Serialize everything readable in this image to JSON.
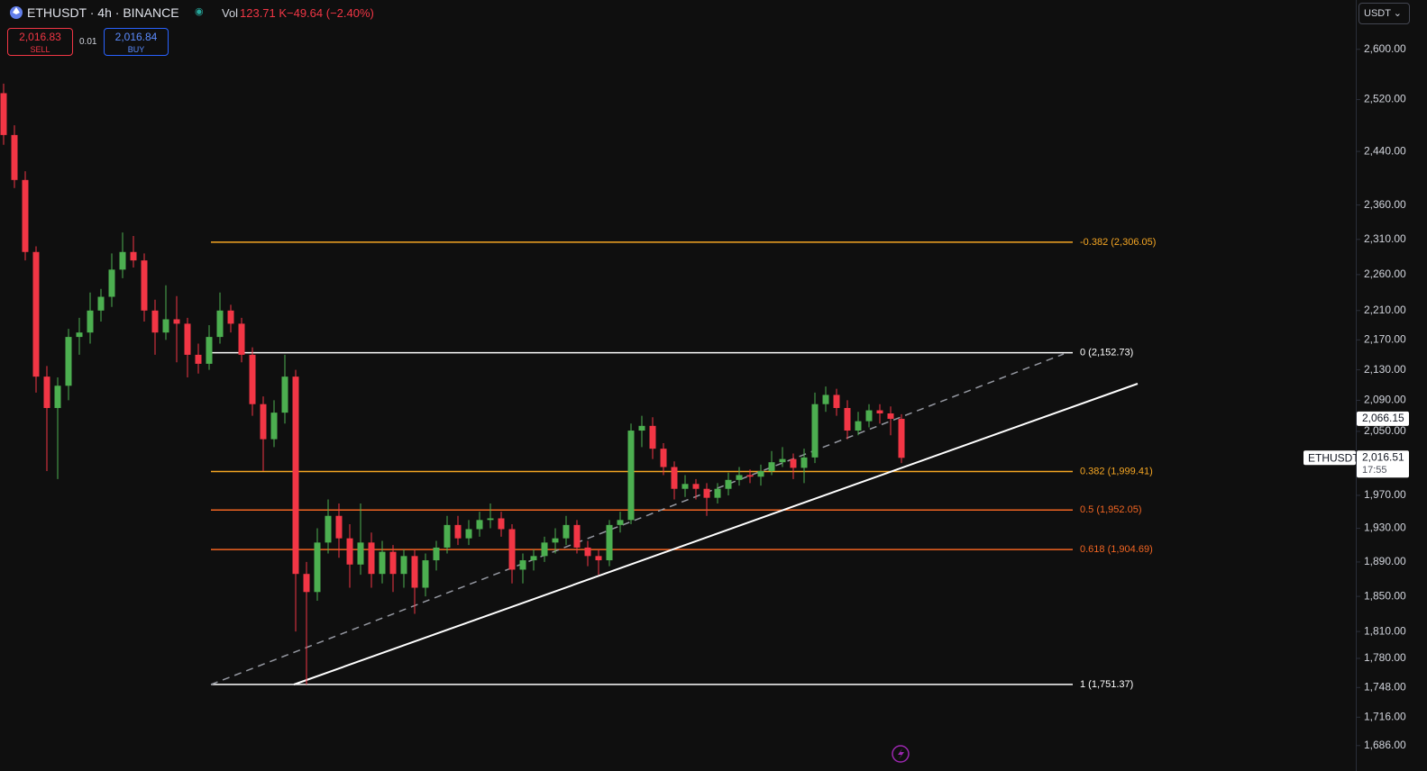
{
  "header": {
    "symbol": "ETHUSDT · 4h · BINANCE",
    "vol_label": "Vol",
    "volume": "123.71 K",
    "change": "−49.64 (−2.40%)",
    "sell_price": "2,016.83",
    "sell_label": "SELL",
    "spread": "0.01",
    "buy_price": "2,016.84",
    "buy_label": "BUY",
    "currency": "USDT"
  },
  "chart_data": {
    "type": "candlestick",
    "log_scale": true,
    "grid": false,
    "up_color": "#4caf50",
    "down_color": "#f23645",
    "ylim": [
      1667,
      2681
    ],
    "yticks": [
      {
        "value": 2600,
        "label": "2,600.00"
      },
      {
        "value": 2520,
        "label": "2,520.00"
      },
      {
        "value": 2440,
        "label": "2,440.00"
      },
      {
        "value": 2360,
        "label": "2,360.00"
      },
      {
        "value": 2310,
        "label": "2,310.00"
      },
      {
        "value": 2260,
        "label": "2,260.00"
      },
      {
        "value": 2210,
        "label": "2,210.00"
      },
      {
        "value": 2170,
        "label": "2,170.00"
      },
      {
        "value": 2130,
        "label": "2,130.00"
      },
      {
        "value": 2090,
        "label": "2,090.00"
      },
      {
        "value": 2050,
        "label": "2,050.00"
      },
      {
        "value": 1970,
        "label": "1,970.00"
      },
      {
        "value": 1930,
        "label": "1,930.00"
      },
      {
        "value": 1890,
        "label": "1,890.00"
      },
      {
        "value": 1850,
        "label": "1,850.00"
      },
      {
        "value": 1810,
        "label": "1,810.00"
      },
      {
        "value": 1780,
        "label": "1,780.00"
      },
      {
        "value": 1748,
        "label": "1,748.00"
      },
      {
        "value": 1716,
        "label": "1,716.00"
      },
      {
        "value": 1686,
        "label": "1,686.00"
      }
    ],
    "candles": [
      [
        2530,
        2545,
        2450,
        2465
      ],
      [
        2465,
        2480,
        2385,
        2397
      ],
      [
        2397,
        2410,
        2280,
        2292
      ],
      [
        2292,
        2300,
        2100,
        2121
      ],
      [
        2121,
        2135,
        2000,
        2080
      ],
      [
        2080,
        2120,
        1990,
        2109
      ],
      [
        2109,
        2185,
        2090,
        2174
      ],
      [
        2174,
        2200,
        2150,
        2180
      ],
      [
        2180,
        2235,
        2165,
        2210
      ],
      [
        2210,
        2240,
        2195,
        2229
      ],
      [
        2229,
        2290,
        2215,
        2267
      ],
      [
        2267,
        2320,
        2255,
        2292
      ],
      [
        2292,
        2315,
        2270,
        2280
      ],
      [
        2280,
        2290,
        2195,
        2210
      ],
      [
        2210,
        2225,
        2150,
        2180
      ],
      [
        2180,
        2245,
        2170,
        2198
      ],
      [
        2198,
        2230,
        2140,
        2192
      ],
      [
        2192,
        2200,
        2120,
        2150
      ],
      [
        2150,
        2165,
        2125,
        2138
      ],
      [
        2138,
        2190,
        2130,
        2174
      ],
      [
        2174,
        2235,
        2165,
        2210
      ],
      [
        2210,
        2218,
        2180,
        2192
      ],
      [
        2192,
        2200,
        2140,
        2150
      ],
      [
        2150,
        2160,
        2070,
        2085
      ],
      [
        2085,
        2095,
        2000,
        2040
      ],
      [
        2040,
        2090,
        2030,
        2074
      ],
      [
        2074,
        2150,
        2060,
        2121
      ],
      [
        2121,
        2130,
        1810,
        1876
      ],
      [
        1876,
        1890,
        1751.37,
        1855
      ],
      [
        1855,
        1930,
        1845,
        1913
      ],
      [
        1913,
        1965,
        1900,
        1945
      ],
      [
        1945,
        1960,
        1895,
        1918
      ],
      [
        1918,
        1935,
        1860,
        1887
      ],
      [
        1887,
        1960,
        1875,
        1913
      ],
      [
        1913,
        1925,
        1860,
        1876
      ],
      [
        1876,
        1915,
        1865,
        1902
      ],
      [
        1902,
        1910,
        1855,
        1876
      ],
      [
        1876,
        1905,
        1860,
        1897
      ],
      [
        1897,
        1905,
        1830,
        1860
      ],
      [
        1860,
        1900,
        1850,
        1892
      ],
      [
        1892,
        1915,
        1880,
        1907
      ],
      [
        1907,
        1945,
        1900,
        1934
      ],
      [
        1934,
        1945,
        1910,
        1918
      ],
      [
        1918,
        1940,
        1910,
        1929
      ],
      [
        1929,
        1950,
        1920,
        1940
      ],
      [
        1940,
        1960,
        1930,
        1942
      ],
      [
        1942,
        1950,
        1920,
        1929
      ],
      [
        1929,
        1935,
        1865,
        1881
      ],
      [
        1881,
        1900,
        1865,
        1892
      ],
      [
        1892,
        1905,
        1880,
        1897
      ],
      [
        1897,
        1920,
        1890,
        1913
      ],
      [
        1913,
        1930,
        1900,
        1918
      ],
      [
        1918,
        1945,
        1910,
        1934
      ],
      [
        1934,
        1940,
        1900,
        1907
      ],
      [
        1907,
        1915,
        1885,
        1897
      ],
      [
        1897,
        1905,
        1875,
        1892
      ],
      [
        1892,
        1940,
        1885,
        1934
      ],
      [
        1934,
        1950,
        1925,
        1940
      ],
      [
        1940,
        2060,
        1935,
        2051
      ],
      [
        2051,
        2070,
        2030,
        2057
      ],
      [
        2057,
        2068,
        2015,
        2028
      ],
      [
        2028,
        2035,
        1995,
        2005
      ],
      [
        2005,
        2012,
        1965,
        1978
      ],
      [
        1978,
        1995,
        1968,
        1984
      ],
      [
        1984,
        1990,
        1965,
        1978
      ],
      [
        1978,
        1985,
        1945,
        1967
      ],
      [
        1967,
        1985,
        1960,
        1978
      ],
      [
        1978,
        1998,
        1970,
        1989
      ],
      [
        1989,
        2005,
        1982,
        1995
      ],
      [
        1995,
        2002,
        1985,
        1993
      ],
      [
        1993,
        2008,
        1982,
        2000
      ],
      [
        2000,
        2025,
        1995,
        2011
      ],
      [
        2011,
        2030,
        2005,
        2015
      ],
      [
        2015,
        2022,
        1990,
        2004
      ],
      [
        2004,
        2028,
        1985,
        2017
      ],
      [
        2017,
        2100,
        2010,
        2085
      ],
      [
        2085,
        2108,
        2075,
        2097
      ],
      [
        2097,
        2105,
        2070,
        2080
      ],
      [
        2080,
        2090,
        2040,
        2051
      ],
      [
        2051,
        2075,
        2045,
        2063
      ],
      [
        2063,
        2085,
        2055,
        2077
      ],
      [
        2077,
        2085,
        2060,
        2073
      ],
      [
        2073,
        2082,
        2045,
        2066
      ],
      [
        2066,
        2072,
        2010,
        2016.51
      ]
    ],
    "fib_levels": [
      {
        "label": "-0.382 (2,306.05)",
        "price": 2306.05,
        "color": "#f5a623"
      },
      {
        "label": "0 (2,152.73)",
        "price": 2152.73,
        "color": "#ffffff"
      },
      {
        "label": "0.382 (1,999.41)",
        "price": 1999.41,
        "color": "#f5a623"
      },
      {
        "label": "0.5 (1,952.05)",
        "price": 1952.05,
        "color": "#f26522"
      },
      {
        "label": "0.618 (1,904.69)",
        "price": 1904.69,
        "color": "#f26522"
      },
      {
        "label": "1 (1,751.37)",
        "price": 1751.37,
        "color": "#ffffff"
      }
    ],
    "price_tags": [
      {
        "value": 2066.15,
        "label": "2,066.15"
      },
      {
        "value": 2016.51,
        "label": "2,016.51",
        "symbol": "ETHUSDT",
        "countdown": "17:55"
      }
    ]
  }
}
